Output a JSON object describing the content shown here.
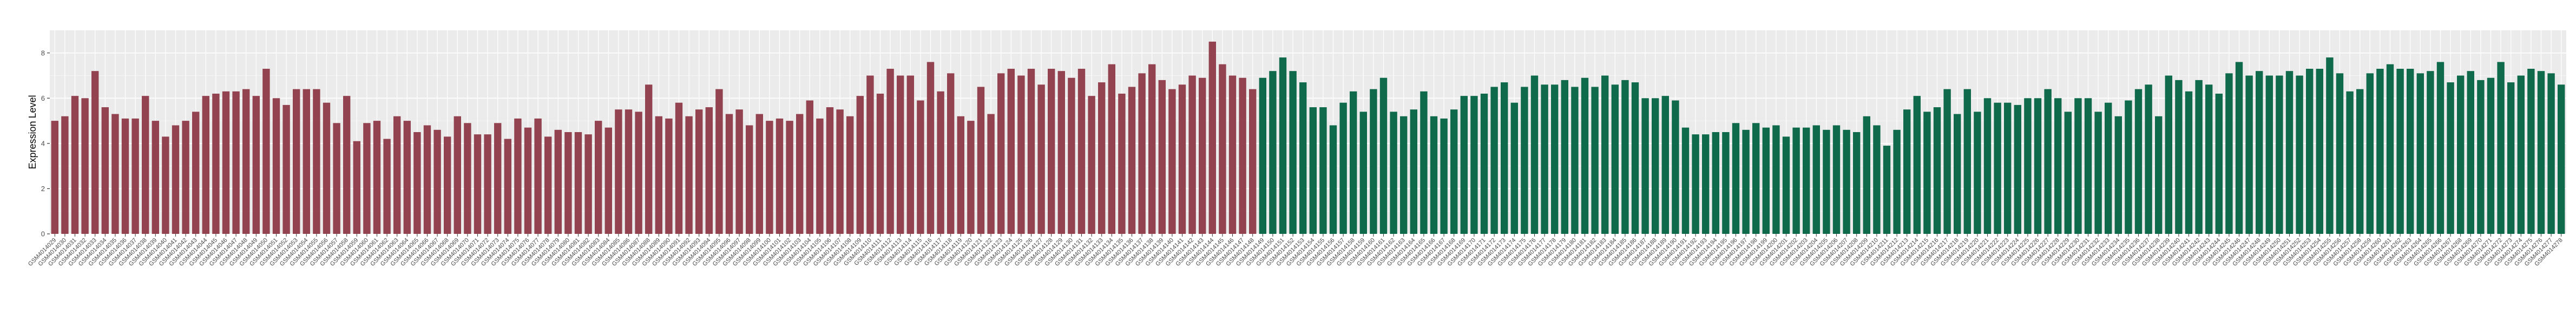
{
  "chart_data": {
    "type": "bar",
    "title": "",
    "xlabel": "",
    "ylabel": "Expression Level",
    "ylim": [
      0,
      9
    ],
    "yticks": [
      0,
      2,
      4,
      6,
      8
    ],
    "grid": true,
    "legend": "none",
    "categories": [
      "GSM4014029",
      "GSM4014030",
      "GSM4014031",
      "GSM4014032",
      "GSM4014033",
      "GSM4014034",
      "GSM4014035",
      "GSM4014036",
      "GSM4014037",
      "GSM4014038",
      "GSM4014039",
      "GSM4014040",
      "GSM4014041",
      "GSM4014042",
      "GSM4014043",
      "GSM4014044",
      "GSM4014045",
      "GSM4014046",
      "GSM4014047",
      "GSM4014048",
      "GSM4014049",
      "GSM4014050",
      "GSM4014051",
      "GSM4014052",
      "GSM4014053",
      "GSM4014054",
      "GSM4014055",
      "GSM4014056",
      "GSM4014057",
      "GSM4014058",
      "GSM4014059",
      "GSM4014060",
      "GSM4014061",
      "GSM4014062",
      "GSM4014063",
      "GSM4014064",
      "GSM4014065",
      "GSM4014066",
      "GSM4014067",
      "GSM4014068",
      "GSM4014069",
      "GSM4014070",
      "GSM4014071",
      "GSM4014072",
      "GSM4014073",
      "GSM4014074",
      "GSM4014075",
      "GSM4014076",
      "GSM4014077",
      "GSM4014078",
      "GSM4014079",
      "GSM4014080",
      "GSM4014081",
      "GSM4014082",
      "GSM4014083",
      "GSM4014084",
      "GSM4014085",
      "GSM4014086",
      "GSM4014087",
      "GSM4014088",
      "GSM4014089",
      "GSM4014090",
      "GSM4014091",
      "GSM4014092",
      "GSM4014093",
      "GSM4014094",
      "GSM4014095",
      "GSM4014096",
      "GSM4014097",
      "GSM4014098",
      "GSM4014099",
      "GSM4014100",
      "GSM4014101",
      "GSM4014102",
      "GSM4014103",
      "GSM4014104",
      "GSM4014105",
      "GSM4014106",
      "GSM4014107",
      "GSM4014108",
      "GSM4014109",
      "GSM4014110",
      "GSM4014111",
      "GSM4014112",
      "GSM4014113",
      "GSM4014114",
      "GSM4014115",
      "GSM4014116",
      "GSM4014117",
      "GSM4014118",
      "GSM4014119",
      "GSM4014120",
      "GSM4014121",
      "GSM4014122",
      "GSM4014123",
      "GSM4014124",
      "GSM4014125",
      "GSM4014126",
      "GSM4014127",
      "GSM4014128",
      "GSM4014129",
      "GSM4014130",
      "GSM4014131",
      "GSM4014132",
      "GSM4014133",
      "GSM4014134",
      "GSM4014135",
      "GSM4014136",
      "GSM4014137",
      "GSM4014138",
      "GSM4014139",
      "GSM4014140",
      "GSM4014141",
      "GSM4014142",
      "GSM4014143",
      "GSM4014144",
      "GSM4014145",
      "GSM4014146",
      "GSM4014147",
      "GSM4014148",
      "GSM4014149",
      "GSM4014150",
      "GSM4014151",
      "GSM4014152",
      "GSM4014153",
      "GSM4014154",
      "GSM4014155",
      "GSM4014156",
      "GSM4014157",
      "GSM4014158",
      "GSM4014159",
      "GSM4014160",
      "GSM4014161",
      "GSM4014162",
      "GSM4014163",
      "GSM4014164",
      "GSM4014165",
      "GSM4014166",
      "GSM4014167",
      "GSM4014168",
      "GSM4014169",
      "GSM4014170",
      "GSM4014171",
      "GSM4014172",
      "GSM4014173",
      "GSM4014174",
      "GSM4014175",
      "GSM4014176",
      "GSM4014177",
      "GSM4014178",
      "GSM4014179",
      "GSM4014180",
      "GSM4014181",
      "GSM4014182",
      "GSM4014183",
      "GSM4014184",
      "GSM4014185",
      "GSM4014186",
      "GSM4014187",
      "GSM4014188",
      "GSM4014189",
      "GSM4014190",
      "GSM4014191",
      "GSM4014192",
      "GSM4014193",
      "GSM4014194",
      "GSM4014195",
      "GSM4014196",
      "GSM4014197",
      "GSM4014198",
      "GSM4014199",
      "GSM4014200",
      "GSM4014201",
      "GSM4014202",
      "GSM4014203",
      "GSM4014204",
      "GSM4014205",
      "GSM4014206",
      "GSM4014207",
      "GSM4014208",
      "GSM4014209",
      "GSM4014210",
      "GSM4014211",
      "GSM4014212",
      "GSM4014213",
      "GSM4014214",
      "GSM4014215",
      "GSM4014216",
      "GSM4014217",
      "GSM4014218",
      "GSM4014219",
      "GSM4014220",
      "GSM4014221",
      "GSM4014222",
      "GSM4014223",
      "GSM4014224",
      "GSM4014225",
      "GSM4014226",
      "GSM4014227",
      "GSM4014228",
      "GSM4014229",
      "GSM4014230",
      "GSM4014231",
      "GSM4014232",
      "GSM4014233",
      "GSM4014234",
      "GSM4014235",
      "GSM4014236",
      "GSM4014237",
      "GSM4014238",
      "GSM4014239",
      "GSM4014240",
      "GSM4014241",
      "GSM4014242",
      "GSM4014243",
      "GSM4014244",
      "GSM4014245",
      "GSM4014246",
      "GSM4014247",
      "GSM4014248",
      "GSM4014249",
      "GSM4014250",
      "GSM4014251",
      "GSM4014252",
      "GSM4014253",
      "GSM4014254",
      "GSM4014255",
      "GSM4014256",
      "GSM4014257",
      "GSM4014258",
      "GSM4014259",
      "GSM4014260",
      "GSM4014261",
      "GSM4014262",
      "GSM4014263",
      "GSM4014264",
      "GSM4014265",
      "GSM4014266",
      "GSM4014267",
      "GSM4014268",
      "GSM4014269",
      "GSM4014270",
      "GSM4014271",
      "GSM4014272",
      "GSM4014273",
      "GSM4014274",
      "GSM4014275",
      "GSM4014276",
      "GSM4014277",
      "GSM4014278"
    ],
    "group_colors": [
      "#934250",
      "#0f6a4b"
    ],
    "groups": [
      0,
      0,
      0,
      0,
      0,
      0,
      0,
      0,
      0,
      0,
      0,
      0,
      0,
      0,
      0,
      0,
      0,
      0,
      0,
      0,
      0,
      0,
      0,
      0,
      0,
      0,
      0,
      0,
      0,
      0,
      0,
      0,
      0,
      0,
      0,
      0,
      0,
      0,
      0,
      0,
      0,
      0,
      0,
      0,
      0,
      0,
      0,
      0,
      0,
      0,
      0,
      0,
      0,
      0,
      0,
      0,
      0,
      0,
      0,
      0,
      0,
      0,
      0,
      0,
      0,
      0,
      0,
      0,
      0,
      0,
      0,
      0,
      0,
      0,
      0,
      0,
      0,
      0,
      0,
      0,
      0,
      0,
      0,
      0,
      0,
      0,
      0,
      0,
      0,
      0,
      0,
      0,
      0,
      0,
      0,
      0,
      0,
      0,
      0,
      0,
      0,
      0,
      0,
      0,
      0,
      0,
      0,
      0,
      0,
      0,
      0,
      0,
      0,
      0,
      0,
      0,
      0,
      0,
      0,
      0,
      1,
      1,
      1,
      1,
      1,
      1,
      1,
      1,
      1,
      1,
      1,
      1,
      1,
      1,
      1,
      1,
      1,
      1,
      1,
      1,
      1,
      1,
      1,
      1,
      1,
      1,
      1,
      1,
      1,
      1,
      1,
      1,
      1,
      1,
      1,
      1,
      1,
      1,
      1,
      1,
      1,
      1,
      1,
      1,
      1,
      1,
      1,
      1,
      1,
      1,
      1,
      1,
      1,
      1,
      1,
      1,
      1,
      1,
      1,
      1,
      1,
      1,
      1,
      1,
      1,
      1,
      1,
      1,
      1,
      1,
      1,
      1,
      1,
      1,
      1,
      1,
      1,
      1,
      1,
      1,
      1,
      1,
      1,
      1,
      1,
      1,
      1,
      1,
      1,
      1,
      1,
      1,
      1,
      1,
      1,
      1,
      1,
      1,
      1,
      1,
      1,
      1,
      1,
      1,
      1,
      1,
      1,
      1,
      1,
      1,
      1,
      1,
      1,
      1,
      1,
      1,
      1,
      1,
      1,
      1,
      1,
      1,
      1,
      1,
      1,
      1,
      1,
      1,
      1,
      1
    ],
    "values": [
      5.0,
      5.2,
      6.1,
      6.0,
      7.2,
      5.6,
      5.3,
      5.1,
      5.1,
      6.1,
      5.0,
      4.3,
      4.8,
      5.0,
      5.4,
      6.1,
      6.2,
      6.3,
      6.3,
      6.4,
      6.1,
      7.3,
      6.0,
      5.7,
      6.4,
      6.4,
      6.4,
      5.8,
      4.9,
      6.1,
      4.1,
      4.9,
      5.0,
      4.2,
      5.2,
      5.0,
      4.5,
      4.8,
      4.6,
      4.3,
      5.2,
      4.9,
      4.4,
      4.4,
      4.9,
      4.2,
      5.1,
      4.7,
      5.1,
      4.3,
      4.6,
      4.5,
      4.5,
      4.4,
      5.0,
      4.7,
      5.5,
      5.5,
      5.4,
      6.6,
      5.2,
      5.1,
      5.8,
      5.2,
      5.5,
      5.6,
      6.4,
      5.3,
      5.5,
      4.8,
      5.3,
      5.0,
      5.1,
      5.0,
      5.3,
      5.9,
      5.1,
      5.6,
      5.5,
      5.2,
      6.1,
      7.0,
      6.2,
      7.3,
      7.0,
      7.0,
      5.9,
      7.6,
      6.3,
      7.1,
      5.2,
      5.0,
      6.5,
      5.3,
      7.1,
      7.3,
      7.0,
      7.3,
      6.6,
      7.3,
      7.2,
      6.9,
      7.3,
      6.1,
      6.7,
      7.5,
      6.2,
      6.5,
      7.1,
      7.5,
      6.8,
      6.4,
      6.6,
      7.0,
      6.9,
      8.5,
      7.5,
      7.0,
      6.9,
      6.4,
      6.9,
      7.2,
      7.8,
      7.2,
      6.7,
      5.6,
      5.6,
      4.8,
      5.8,
      6.3,
      5.4,
      6.4,
      6.9,
      5.4,
      5.2,
      5.5,
      6.3,
      5.2,
      5.1,
      5.5,
      6.1,
      6.1,
      6.2,
      6.5,
      6.7,
      5.8,
      6.5,
      7.0,
      6.6,
      6.6,
      6.8,
      6.5,
      6.9,
      6.5,
      7.0,
      6.6,
      6.8,
      6.7,
      6.0,
      6.0,
      6.1,
      5.9,
      4.7,
      4.4,
      4.4,
      4.5,
      4.5,
      4.9,
      4.6,
      4.9,
      4.7,
      4.8,
      4.3,
      4.7,
      4.7,
      4.8,
      4.6,
      4.8,
      4.6,
      4.5,
      5.2,
      4.8,
      3.9,
      4.6,
      5.5,
      6.1,
      5.4,
      5.6,
      6.4,
      5.3,
      6.4,
      5.4,
      6.0,
      5.8,
      5.8,
      5.7,
      6.0,
      6.0,
      6.4,
      6.0,
      5.4,
      6.0,
      6.0,
      5.4,
      5.8,
      5.2,
      5.9,
      6.4,
      6.6,
      5.2,
      7.0,
      6.8,
      6.3,
      6.8,
      6.6,
      6.2,
      7.1,
      7.6,
      7.0,
      7.2,
      7.0,
      7.0,
      7.2,
      7.0,
      7.3,
      7.3,
      7.8,
      7.1,
      6.3,
      6.4,
      7.1,
      7.3,
      7.5,
      7.3,
      7.3,
      7.1,
      7.2,
      7.6,
      6.7,
      7.0,
      7.2,
      6.8,
      6.9,
      7.6,
      6.7,
      7.0,
      7.3,
      7.2,
      7.1,
      6.6
    ]
  }
}
